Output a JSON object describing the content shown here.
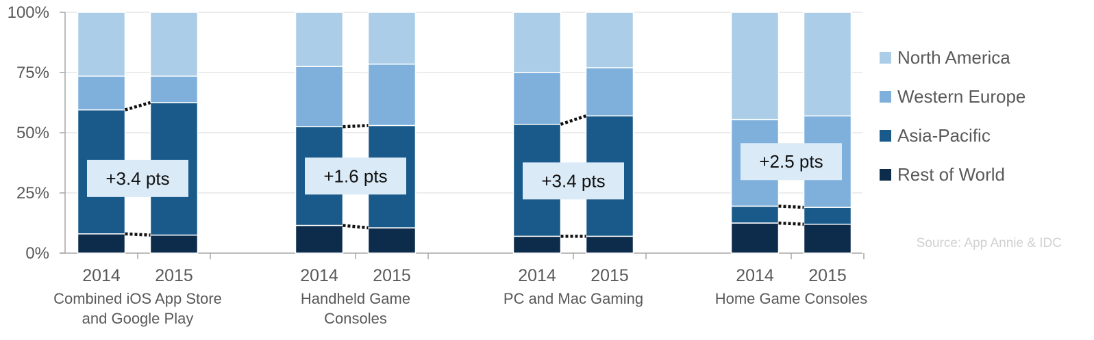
{
  "chart_data": {
    "type": "stacked-bar",
    "y_format": "percent",
    "ylim": [
      0,
      100
    ],
    "y_ticks": [
      "0%",
      "25%",
      "50%",
      "75%",
      "100%"
    ],
    "series": [
      {
        "name": "Rest of World",
        "color": "#0d2b4a"
      },
      {
        "name": "Asia-Pacific",
        "color": "#1a5a8a"
      },
      {
        "name": "Western Europe",
        "color": "#7fb0dc"
      },
      {
        "name": "North America",
        "color": "#abcde8"
      }
    ],
    "legend_order": [
      "North America",
      "Western Europe",
      "Asia-Pacific",
      "Rest of World"
    ],
    "groups": [
      {
        "label_lines": [
          "Combined iOS App Store",
          "and Google Play"
        ],
        "annotation": "+3.4 pts",
        "bars": [
          {
            "year": "2014",
            "values": [
              8,
              51.5,
              14,
              26.5
            ]
          },
          {
            "year": "2015",
            "values": [
              7.5,
              55,
              11,
              26.5
            ]
          }
        ]
      },
      {
        "label_lines": [
          "Handheld Game",
          "Consoles"
        ],
        "annotation": "+1.6 pts",
        "bars": [
          {
            "year": "2014",
            "values": [
              11.5,
              41,
              25,
              22.5
            ]
          },
          {
            "year": "2015",
            "values": [
              10.5,
              42.5,
              25.5,
              21.5
            ]
          }
        ]
      },
      {
        "label_lines": [
          "PC and Mac Gaming"
        ],
        "annotation": "+3.4 pts",
        "bars": [
          {
            "year": "2014",
            "values": [
              7,
              46.5,
              21.5,
              25
            ]
          },
          {
            "year": "2015",
            "values": [
              7,
              50,
              20,
              23
            ]
          }
        ]
      },
      {
        "label_lines": [
          "Home Game Consoles"
        ],
        "annotation": "+2.5 pts",
        "bars": [
          {
            "year": "2014",
            "values": [
              12.5,
              7,
              36,
              44.5
            ]
          },
          {
            "year": "2015",
            "values": [
              12,
              7,
              38,
              43
            ]
          }
        ]
      }
    ],
    "source": "Source: App Annie & IDC"
  }
}
